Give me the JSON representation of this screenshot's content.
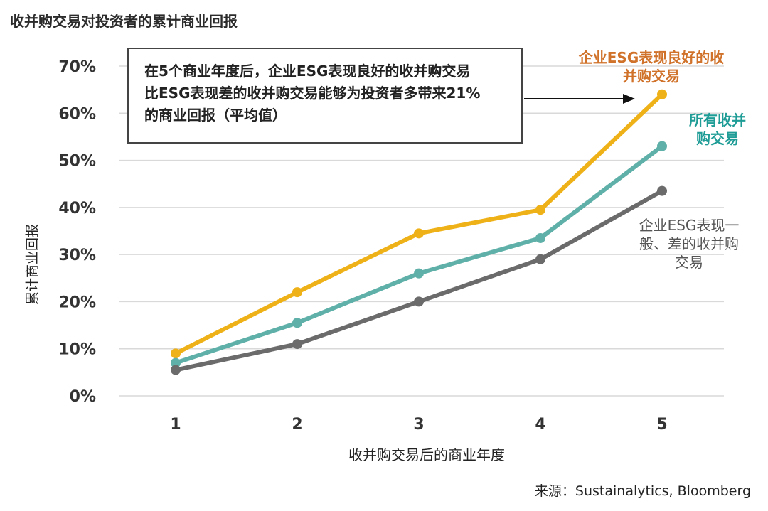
{
  "title": "收并购交易对投资者的累计商业回报",
  "annotation": {
    "lines": [
      "在5个商业年度后，企业ESG表现良好的收并购交易",
      "比ESG表现差的收并购交易能够为投资者多带来21%",
      "的商业回报（平均值）"
    ]
  },
  "series_labels": {
    "good": [
      "企业ESG表现良好的收",
      "并购交易"
    ],
    "all": [
      "所有收并",
      "购交易"
    ],
    "poor": [
      "企业ESG表现一",
      "般、差的收并购",
      "交易"
    ]
  },
  "source": "来源：Sustainalytics, Bloomberg",
  "colors": {
    "good": "#EFB118",
    "all": "#5FB0A8",
    "poor": "#6B6B6B",
    "label_good": "#D0722A",
    "label_all": "#1F9C96",
    "label_poor": "#555555",
    "grid": "#D9D9D9"
  },
  "chart_data": {
    "type": "line",
    "title": "收并购交易对投资者的累计商业回报",
    "xlabel": "收并购交易后的商业年度",
    "ylabel": "累计商业回报",
    "x": [
      1,
      2,
      3,
      4,
      5
    ],
    "ylim": [
      0,
      70
    ],
    "yticks": [
      0,
      10,
      20,
      30,
      40,
      50,
      60,
      70
    ],
    "ytick_labels": [
      "0%",
      "10%",
      "20%",
      "30%",
      "40%",
      "50%",
      "60%",
      "70%"
    ],
    "grid": true,
    "series": [
      {
        "key": "good",
        "name": "企业ESG表现良好的收并购交易",
        "values": [
          9,
          22,
          34.5,
          39.5,
          64
        ]
      },
      {
        "key": "all",
        "name": "所有收并购交易",
        "values": [
          7,
          15.5,
          26,
          33.5,
          53
        ]
      },
      {
        "key": "poor",
        "name": "企业ESG表现一般、差的收并购交易",
        "values": [
          5.5,
          11,
          20,
          29,
          43.5
        ]
      }
    ]
  }
}
